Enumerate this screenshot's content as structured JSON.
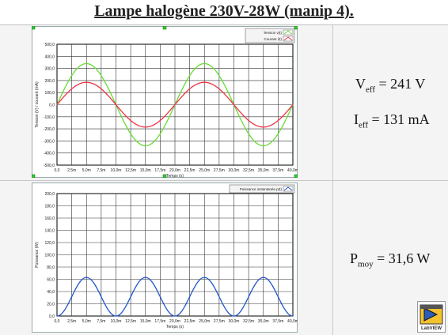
{
  "page": {
    "title": "Lampe halogène 230V-28W (manip 4)."
  },
  "readouts": {
    "veff": {
      "main": "V",
      "sub": "eff",
      "value": " = 241 V"
    },
    "ieff": {
      "main": "I",
      "sub": "eff",
      "value": " = 131 mA"
    },
    "pmoy": {
      "main": "P",
      "sub": "moy",
      "value": " = 31,6 W"
    }
  },
  "logo": {
    "text": "LabVIEW",
    "icon": "labview-logo-icon"
  },
  "chart_data": [
    {
      "type": "line",
      "title": "",
      "xlabel": "Temps (s)",
      "ylabel": "Tension (V) / courant (mA)",
      "xlim": [
        0,
        0.04
      ],
      "ylim": [
        -500,
        500
      ],
      "x_ticks": [
        "0,0",
        "2,5m",
        "5,0m",
        "7,5m",
        "10,0m",
        "12,5m",
        "15,0m",
        "17,5m",
        "20,0m",
        "22,5m",
        "25,0m",
        "27,5m",
        "30,0m",
        "32,5m",
        "35,0m",
        "37,5m",
        "40,0m"
      ],
      "y_ticks": [
        "500,0",
        "400,0",
        "300,0",
        "200,0",
        "100,0",
        "0,0",
        "-100,0",
        "-200,0",
        "-300,0",
        "-400,0",
        "-500,0"
      ],
      "grid": true,
      "legend": "top-right",
      "series": [
        {
          "name": "Tension v(t)",
          "color": "#66dd33",
          "amplitude": 340,
          "frequency_hz": 50,
          "phase_deg": 0
        },
        {
          "name": "Courant i(t)",
          "color": "#ee3344",
          "amplitude": 185,
          "frequency_hz": 50,
          "phase_deg": 0
        }
      ]
    },
    {
      "type": "line",
      "title": "",
      "xlabel": "Temps (s)",
      "ylabel": "Puissance (W)",
      "xlim": [
        0,
        0.04
      ],
      "ylim": [
        0,
        200
      ],
      "x_ticks": [
        "0,0",
        "2,5m",
        "5,0m",
        "7,5m",
        "10,0m",
        "12,5m",
        "15,0m",
        "17,5m",
        "20,0m",
        "22,5m",
        "25,0m",
        "27,5m",
        "30,0m",
        "32,5m",
        "35,0m",
        "37,5m",
        "40,0m"
      ],
      "y_ticks": [
        "200,0",
        "180,0",
        "160,0",
        "140,0",
        "120,0",
        "100,0",
        "80,0",
        "60,0",
        "40,0",
        "20,0",
        "0,0"
      ],
      "grid": true,
      "legend": "top-right",
      "series": [
        {
          "name": "Puissance instantanée p(t)",
          "color": "#2255cc",
          "mean": 31.6,
          "peak": 63,
          "frequency_hz": 100
        }
      ]
    }
  ]
}
